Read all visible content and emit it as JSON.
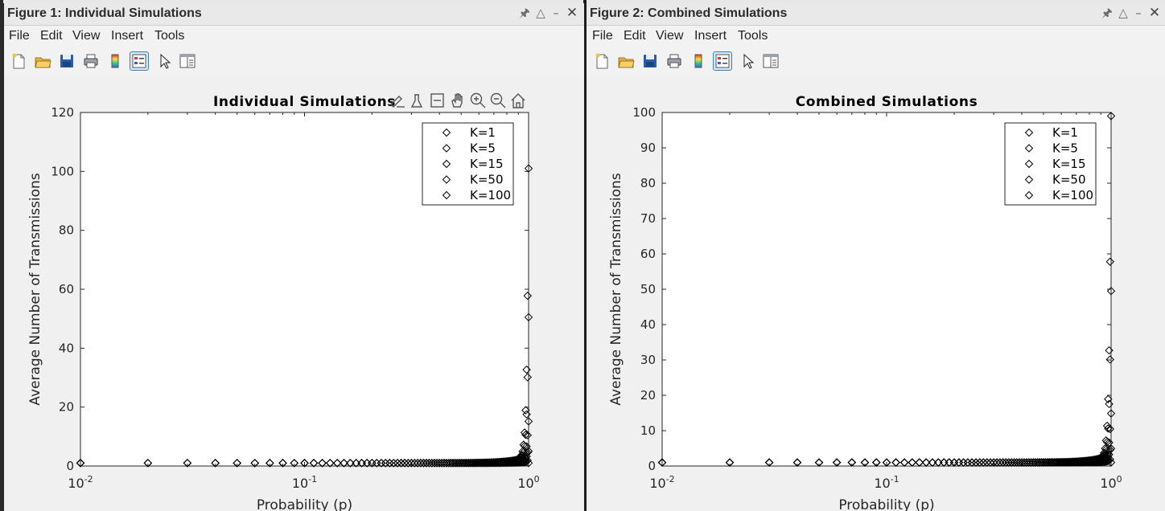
{
  "windows": [
    {
      "id": "w1",
      "title": "Figure 1: Individual Simulations",
      "controls": [
        "pin",
        "maximize",
        "minimize",
        "close"
      ],
      "menu": [
        "File",
        "Edit",
        "View",
        "Insert",
        "Tools"
      ],
      "toolbar": [
        "new-figure-icon",
        "open-file-icon",
        "save-icon",
        "print-icon",
        "colorbar-icon",
        "legend-icon",
        "edit-pointer-icon",
        "property-inspector-icon"
      ],
      "axes_toolbar": [
        "brush-icon",
        "data-cursor-icon",
        "zoom-area-icon",
        "pan-icon",
        "zoom-in-icon",
        "zoom-out-icon",
        "restore-view-icon"
      ],
      "chart_data": {
        "type": "scatter",
        "title": "Individual Simulations",
        "xlabel": "Probability (p)",
        "ylabel": "Average Number of Transmissions",
        "xscale": "log",
        "xlim": [
          0.01,
          1
        ],
        "ylim": [
          0,
          120
        ],
        "yticks": [
          0,
          20,
          40,
          60,
          80,
          100,
          120
        ],
        "ytick_labels": [
          "0",
          "20",
          "40",
          "60",
          "80",
          "100",
          "120"
        ],
        "xtick_labels": [
          {
            "base": "10",
            "exp": "-2"
          },
          {
            "base": "10",
            "exp": "-1"
          },
          {
            "base": "10",
            "exp": "0"
          }
        ],
        "marker": "diamond",
        "legend": [
          "K=1",
          "K=5",
          "K=15",
          "K=50",
          "K=100"
        ],
        "legend_position": "top-right",
        "series": [
          {
            "name": "K=1",
            "K": 1
          },
          {
            "name": "K=5",
            "K": 5
          },
          {
            "name": "K=15",
            "K": 15
          },
          {
            "name": "K=50",
            "K": 50
          },
          {
            "name": "K=100",
            "K": 100
          }
        ],
        "p_values": "0.01 to 1.00 in steps of 0.01",
        "grid": false
      }
    },
    {
      "id": "w2",
      "title": "Figure 2: Combined Simulations",
      "controls": [
        "pin",
        "maximize",
        "minimize",
        "close"
      ],
      "menu": [
        "File",
        "Edit",
        "View",
        "Insert",
        "Tools"
      ],
      "toolbar": [
        "new-figure-icon",
        "open-file-icon",
        "save-icon",
        "print-icon",
        "colorbar-icon",
        "legend-icon",
        "edit-pointer-icon",
        "property-inspector-icon"
      ],
      "chart_data": {
        "type": "scatter",
        "title": "Combined Simulations",
        "xlabel": "Probability (p)",
        "ylabel": "Average Number of Transmissions",
        "xscale": "log",
        "xlim": [
          0.01,
          1
        ],
        "ylim": [
          0,
          100
        ],
        "yticks": [
          0,
          10,
          20,
          30,
          40,
          50,
          60,
          70,
          80,
          90,
          100
        ],
        "ytick_labels": [
          "0",
          "10",
          "20",
          "30",
          "40",
          "50",
          "60",
          "70",
          "80",
          "90",
          "100"
        ],
        "xtick_labels": [
          {
            "base": "10",
            "exp": "-2"
          },
          {
            "base": "10",
            "exp": "-1"
          },
          {
            "base": "10",
            "exp": "0"
          }
        ],
        "marker": "diamond",
        "legend": [
          "K=1",
          "K=5",
          "K=15",
          "K=50",
          "K=100"
        ],
        "legend_position": "top-right",
        "series": [
          {
            "name": "K=1",
            "K": 1
          },
          {
            "name": "K=5",
            "K": 5
          },
          {
            "name": "K=15",
            "K": 15
          },
          {
            "name": "K=50",
            "K": 50
          },
          {
            "name": "K=100",
            "K": 100
          }
        ],
        "p_values": "0.01 to 1.00 in steps of 0.01",
        "grid": false
      }
    }
  ]
}
